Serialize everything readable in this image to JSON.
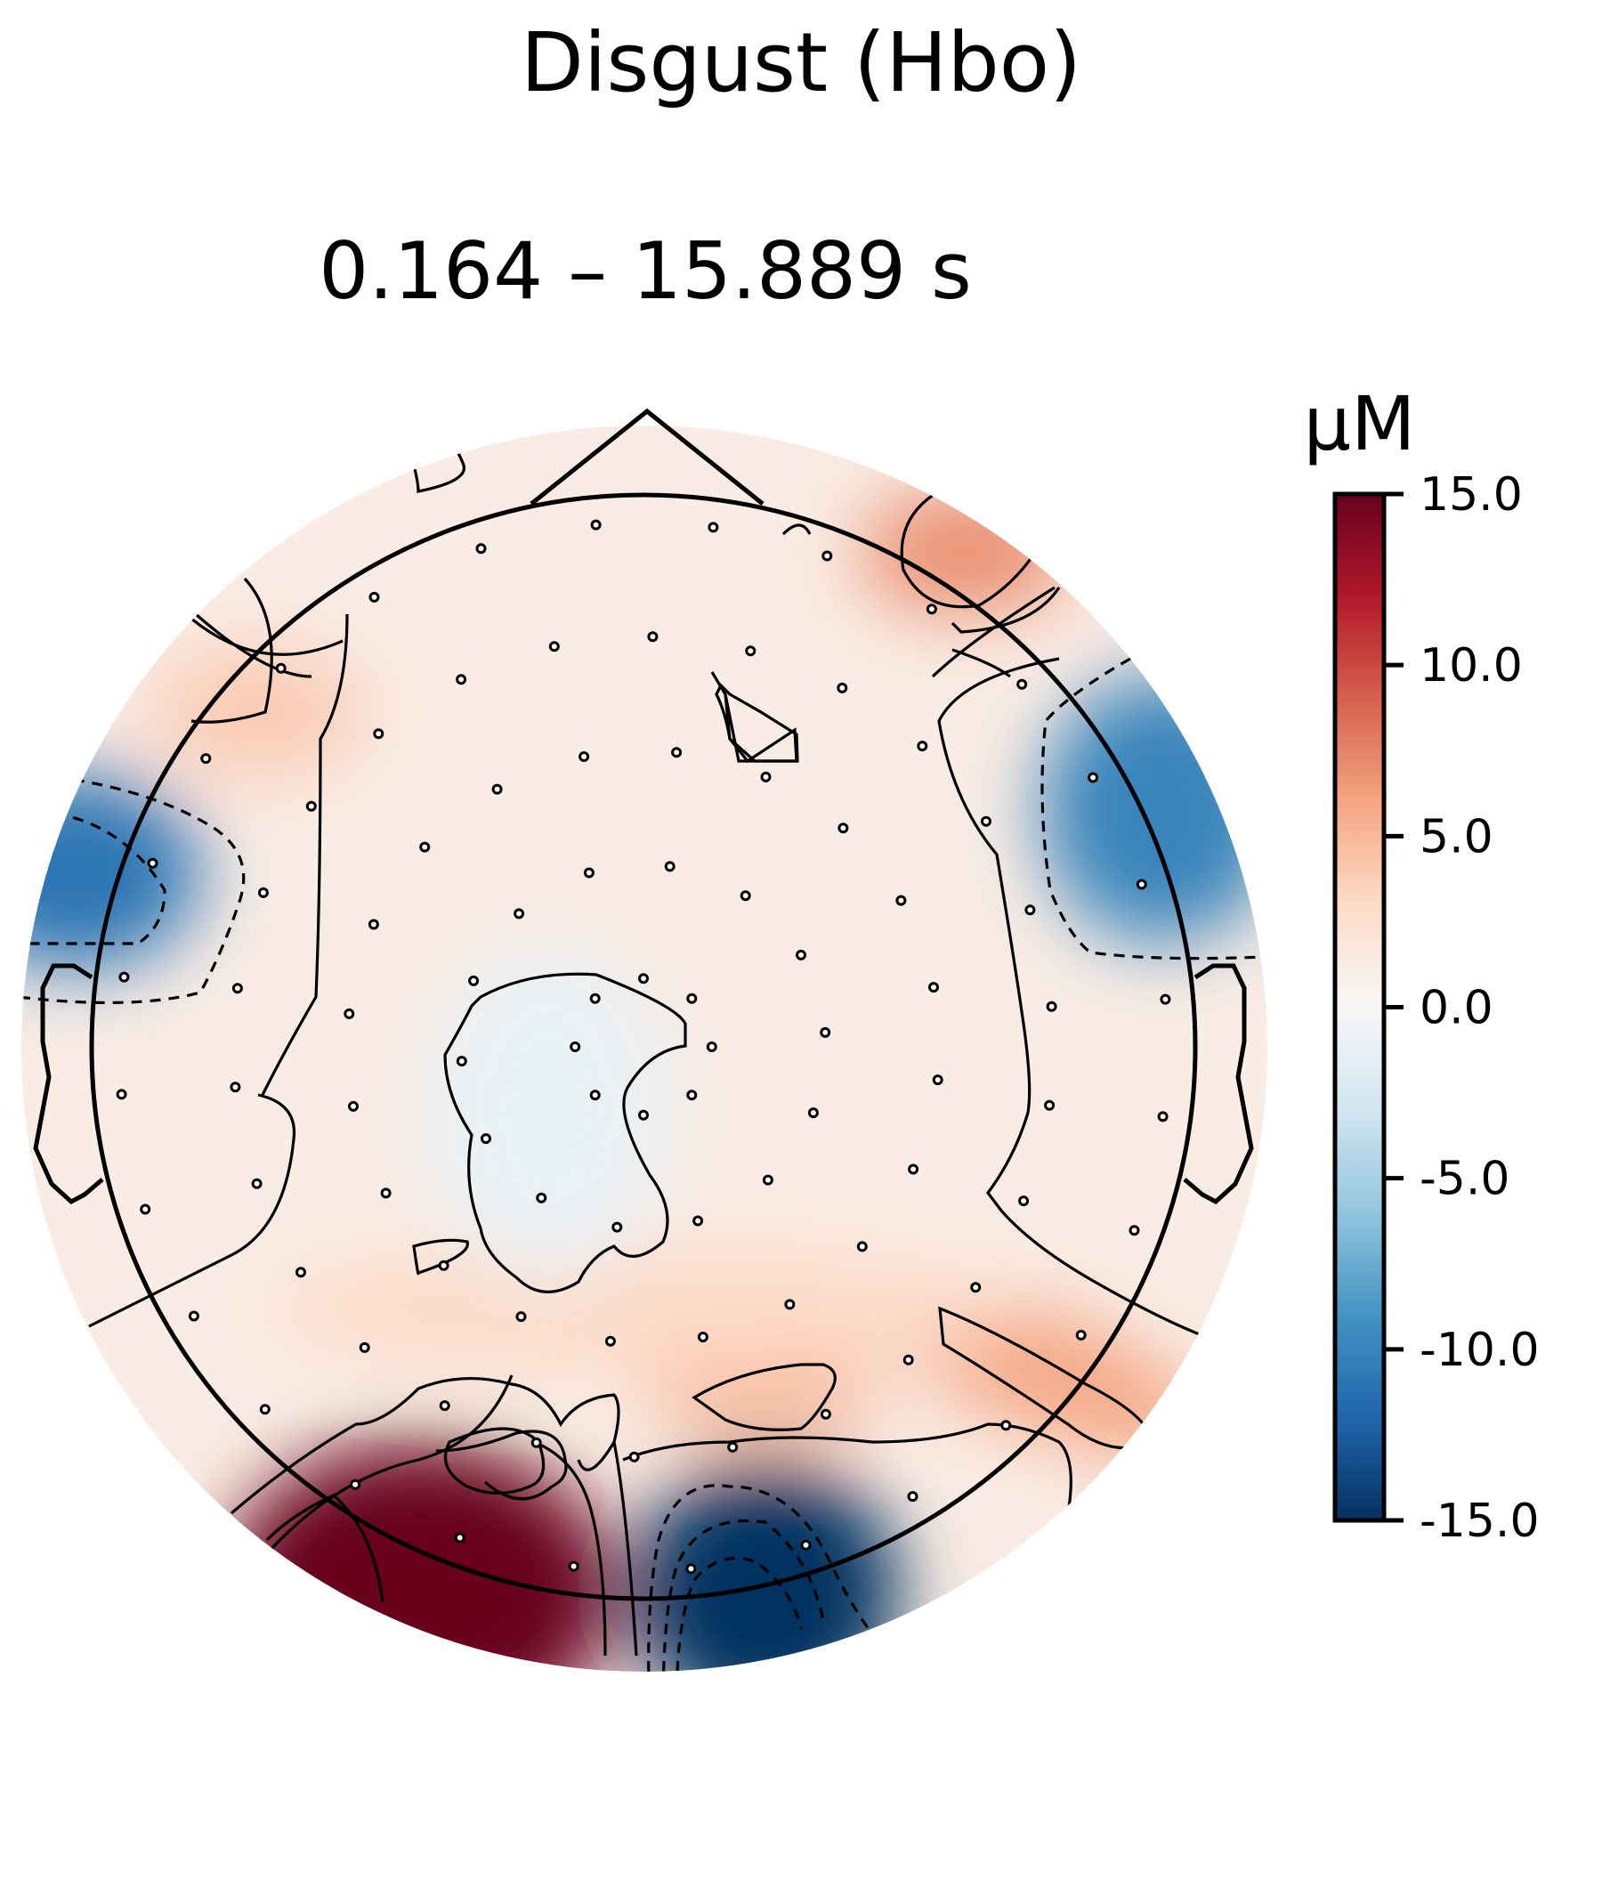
{
  "page": {
    "title": "Disgust (Hbo)"
  },
  "chart_data": {
    "type": "heatmap",
    "subtype": "topomap",
    "title": "0.164 – 15.889 s",
    "colorbar": {
      "label": "µM",
      "colormap": "RdBu_r",
      "vmin": -15.0,
      "vmax": 15.0,
      "ticks": [
        15.0,
        10.0,
        5.0,
        0.0,
        -5.0,
        -10.0,
        -15.0
      ],
      "tick_labels": [
        "15.0",
        "10.0",
        "5.0",
        "0.0",
        "-5.0",
        "-10.0",
        "-15.0"
      ]
    },
    "field_blobs": [
      {
        "region": "left-occipital",
        "value": 15
      },
      {
        "region": "right-occipital",
        "value": -15
      },
      {
        "region": "left-temporal",
        "value": -11
      },
      {
        "region": "right-temporal",
        "value": -10
      },
      {
        "region": "right-frontal",
        "value": 7
      },
      {
        "region": "right-posterior",
        "value": 6
      },
      {
        "region": "mid-posterior",
        "value": 5
      },
      {
        "region": "occipital-center",
        "value": 3
      },
      {
        "region": "left-frontal",
        "value": 4
      },
      {
        "region": "central",
        "value": -1
      }
    ],
    "sensor_count": 96
  }
}
